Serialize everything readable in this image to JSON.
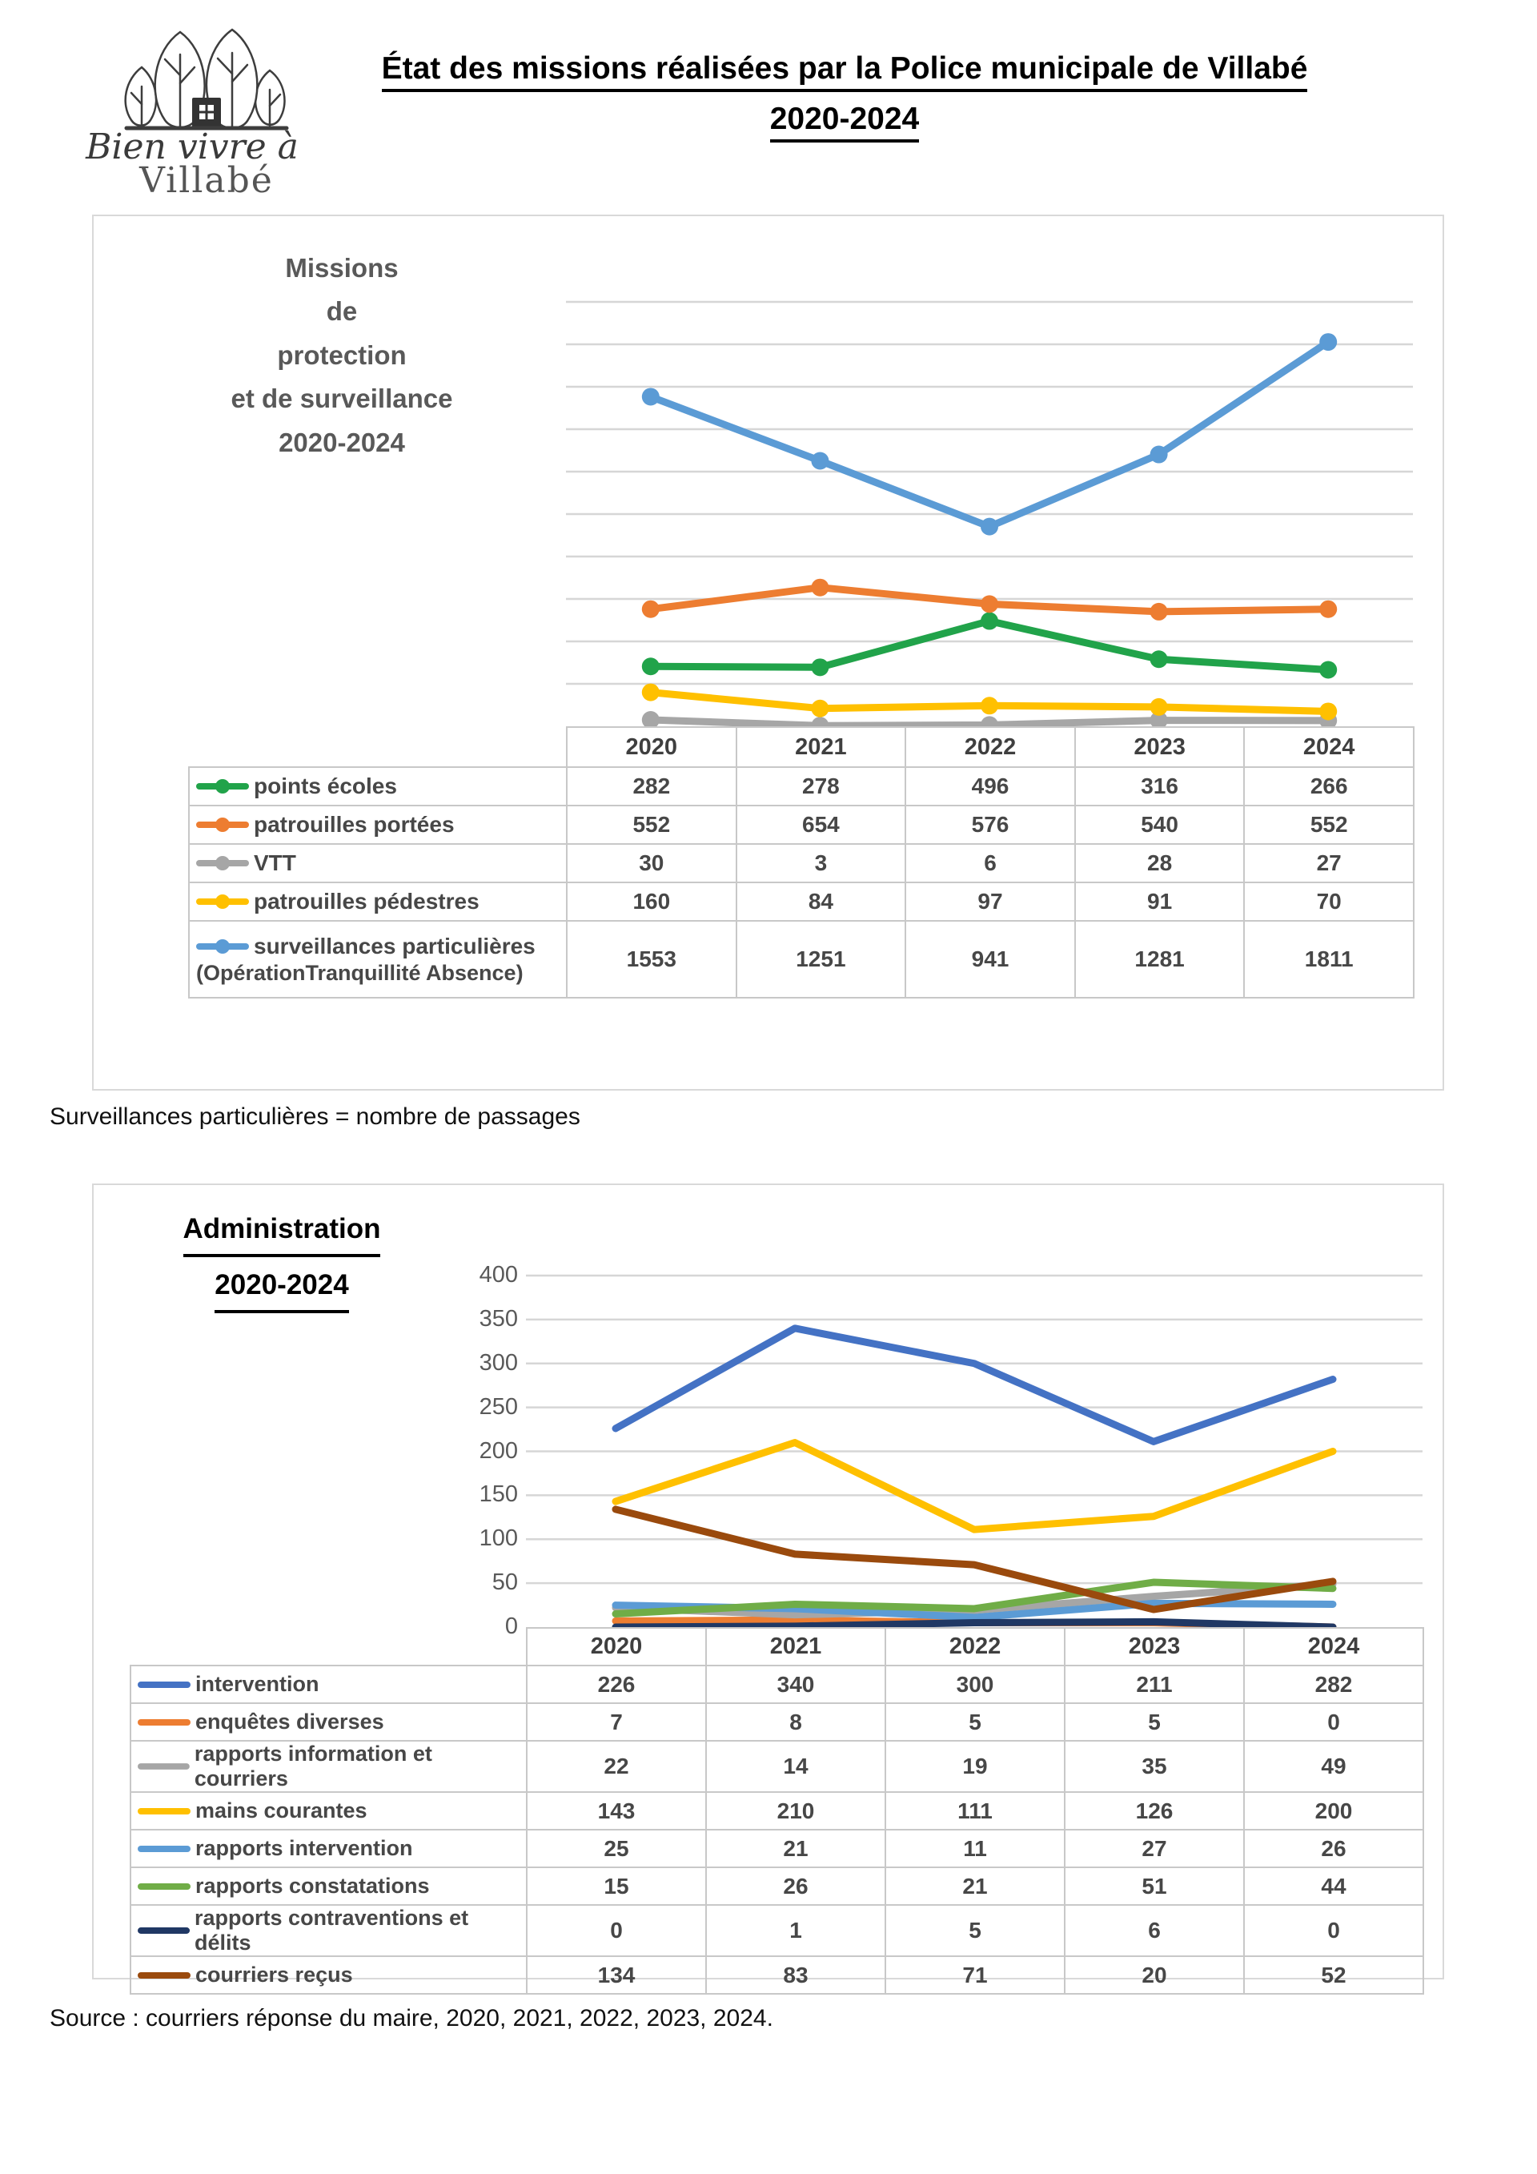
{
  "page": {
    "title_line1": "État des missions réalisées par la Police municipale de Villabé",
    "title_line2": "2020-2024",
    "note": "Surveillances particulières = nombre de passages",
    "source": "Source : courriers réponse du maire, 2020, 2021, 2022, 2023, 2024.",
    "logo": {
      "tagline": "Bien vivre à",
      "town": "Villabé"
    }
  },
  "chart_data": [
    {
      "type": "line",
      "title": "Missions de protection et de surveillance 2020-2024",
      "title_lines": [
        "Missions",
        "de",
        "protection",
        "et de surveillance",
        "2020-2024"
      ],
      "categories": [
        "2020",
        "2021",
        "2022",
        "2023",
        "2024"
      ],
      "series": [
        {
          "name": "points écoles",
          "color": "#21A34A",
          "values": [
            282,
            278,
            496,
            316,
            266
          ]
        },
        {
          "name": "patrouilles portées",
          "color": "#ED7D31",
          "values": [
            552,
            654,
            576,
            540,
            552
          ]
        },
        {
          "name": "VTT",
          "color": "#A6A6A6",
          "values": [
            30,
            3,
            6,
            28,
            27
          ]
        },
        {
          "name": "patrouilles pédestres",
          "color": "#FFC000",
          "values": [
            160,
            84,
            97,
            91,
            70
          ]
        },
        {
          "name": "surveillances particulières (OpérationTranquillité Absence)",
          "name_lines": [
            "surveillances particulières",
            "(OpérationTranquillité Absence)"
          ],
          "color": "#5B9BD5",
          "values": [
            1553,
            1251,
            941,
            1281,
            1811
          ]
        }
      ],
      "ylim": [
        0,
        2000
      ],
      "grid_step": 200,
      "y_labels_visible": false,
      "grid": true,
      "legend_position": "table-left",
      "xlabel": "",
      "ylabel": ""
    },
    {
      "type": "line",
      "title": "Administration 2020-2024",
      "title_lines": [
        "Administration",
        "2020-2024"
      ],
      "categories": [
        "2020",
        "2021",
        "2022",
        "2023",
        "2024"
      ],
      "y_ticks": [
        0,
        50,
        100,
        150,
        200,
        250,
        300,
        350,
        400
      ],
      "series": [
        {
          "name": "intervention",
          "color": "#4472C4",
          "values": [
            226,
            340,
            300,
            211,
            282
          ]
        },
        {
          "name": "enquêtes diverses",
          "color": "#ED7D31",
          "values": [
            7,
            8,
            5,
            5,
            0
          ]
        },
        {
          "name": "rapports information et courriers",
          "color": "#A6A6A6",
          "values": [
            22,
            14,
            19,
            35,
            49
          ]
        },
        {
          "name": "mains courantes",
          "color": "#FFC000",
          "values": [
            143,
            210,
            111,
            126,
            200
          ]
        },
        {
          "name": "rapports intervention",
          "color": "#5B9BD5",
          "values": [
            25,
            21,
            11,
            27,
            26
          ]
        },
        {
          "name": "rapports constatations",
          "color": "#70AD47",
          "values": [
            15,
            26,
            21,
            51,
            44
          ]
        },
        {
          "name": "rapports contraventions et délits",
          "color": "#203864",
          "values": [
            0,
            1,
            5,
            6,
            0
          ]
        },
        {
          "name": "courriers reçus",
          "color": "#9A4A0D",
          "values": [
            134,
            83,
            71,
            20,
            52
          ]
        }
      ],
      "ylim": [
        0,
        400
      ],
      "grid_step": 50,
      "y_labels_visible": true,
      "grid": true,
      "legend_position": "table-left",
      "xlabel": "",
      "ylabel": ""
    }
  ]
}
